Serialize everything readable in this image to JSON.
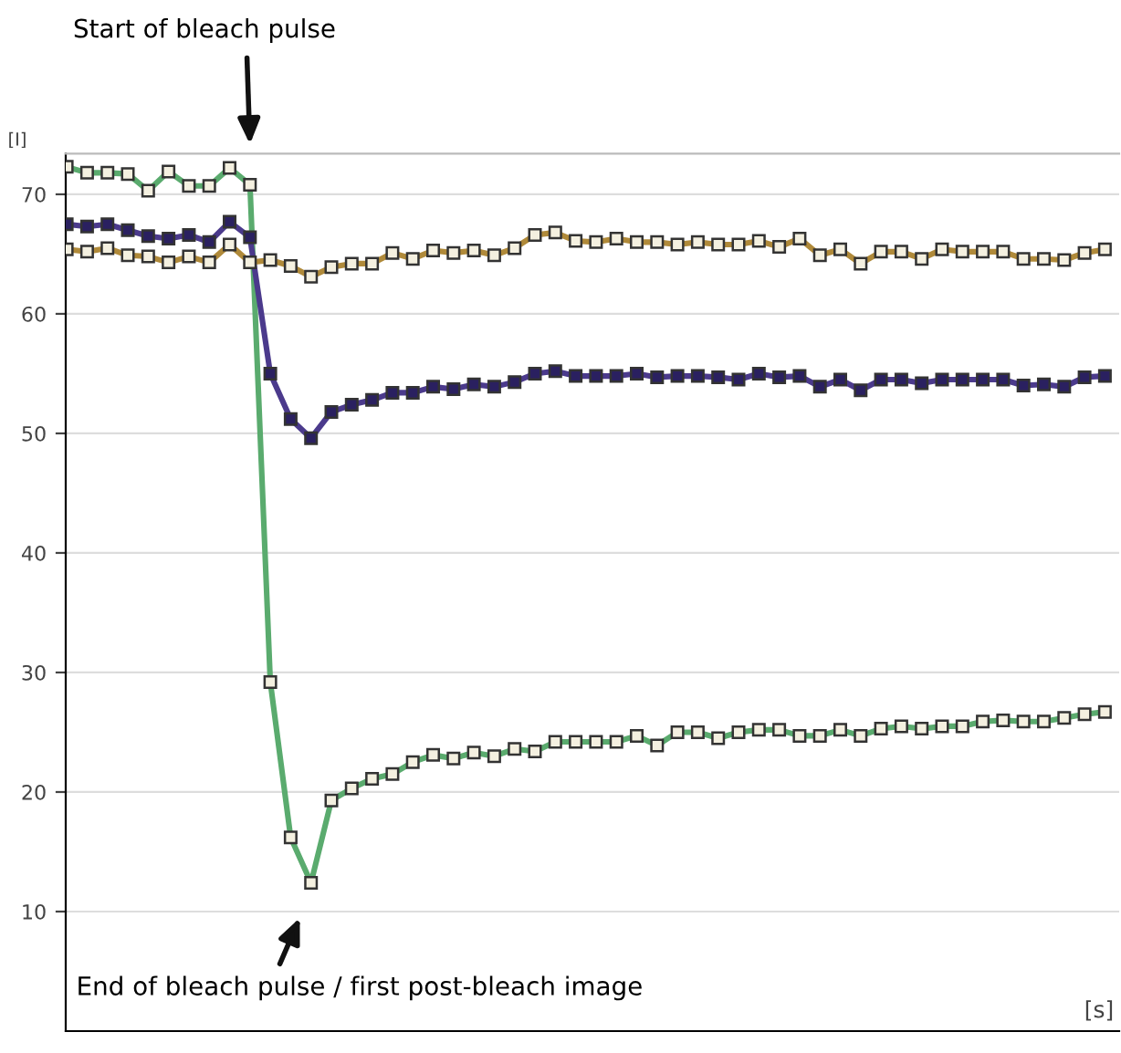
{
  "chart_data": {
    "type": "line",
    "xlabel": "[s]",
    "ylabel": "[I]",
    "categories": [
      null,
      null,
      null,
      null,
      null,
      null,
      null,
      null,
      null,
      null,
      null,
      null,
      null,
      null,
      null,
      null,
      null,
      null,
      null,
      null,
      null,
      null,
      null,
      null,
      null,
      null,
      null,
      null,
      null,
      null,
      null,
      null,
      null,
      null,
      null,
      null,
      null,
      null,
      null,
      null,
      null,
      null,
      null,
      null,
      null,
      null,
      null,
      null,
      null,
      null,
      null,
      null
    ],
    "series": [
      {
        "color": "#5aab6e",
        "values": [
          72.3,
          71.8,
          71.8,
          71.7,
          70.3,
          71.9,
          70.7,
          70.7,
          72.2,
          70.8,
          29.2,
          16.2,
          12.4,
          19.3,
          20.3,
          21.1,
          21.5,
          22.5,
          23.1,
          22.8,
          23.3,
          23.0,
          23.6,
          23.4,
          24.2,
          24.2,
          24.2,
          24.2,
          24.7,
          23.9,
          25.0,
          25.0,
          24.5,
          25.0,
          25.2,
          25.2,
          24.7,
          24.7,
          25.2,
          24.7,
          25.3,
          25.5,
          25.3,
          25.5,
          25.5,
          25.9,
          26.0,
          25.9,
          25.9,
          26.2,
          26.5,
          26.7
        ]
      },
      {
        "color": "#4b3a8c",
        "values": [
          67.5,
          67.3,
          67.5,
          67.0,
          66.5,
          66.3,
          66.6,
          66.0,
          67.7,
          66.4,
          55.0,
          51.2,
          49.6,
          51.8,
          52.4,
          52.8,
          53.4,
          53.4,
          53.9,
          53.7,
          54.1,
          53.9,
          54.3,
          55.0,
          55.2,
          54.8,
          54.8,
          54.8,
          55.0,
          54.7,
          54.8,
          54.8,
          54.7,
          54.5,
          55.0,
          54.7,
          54.8,
          53.9,
          54.5,
          53.6,
          54.5,
          54.5,
          54.2,
          54.5,
          54.5,
          54.5,
          54.5,
          54.0,
          54.1,
          53.9,
          54.7,
          54.8
        ]
      },
      {
        "color": "#b08a3a",
        "values": [
          65.4,
          65.2,
          65.5,
          64.9,
          64.8,
          64.3,
          64.8,
          64.3,
          65.8,
          64.3,
          64.5,
          64.0,
          63.1,
          63.9,
          64.2,
          64.2,
          65.1,
          64.6,
          65.3,
          65.1,
          65.3,
          64.9,
          65.5,
          66.6,
          66.8,
          66.1,
          66.0,
          66.3,
          66.0,
          66.0,
          65.8,
          66.0,
          65.8,
          65.8,
          66.1,
          65.6,
          66.3,
          64.9,
          65.4,
          64.2,
          65.2,
          65.2,
          64.6,
          65.4,
          65.2,
          65.2,
          65.2,
          64.6,
          64.6,
          64.5,
          65.1,
          65.4
        ]
      }
    ],
    "ylim": [
      0,
      73.4
    ],
    "yticks": [
      10,
      20,
      30,
      40,
      50,
      60,
      70
    ],
    "tick_labels": "y",
    "grid": "y",
    "marker": "square",
    "line_style": "solid",
    "annotations": [
      "Start of bleach pulse",
      "End of bleach pulse / first post-bleach image"
    ]
  }
}
